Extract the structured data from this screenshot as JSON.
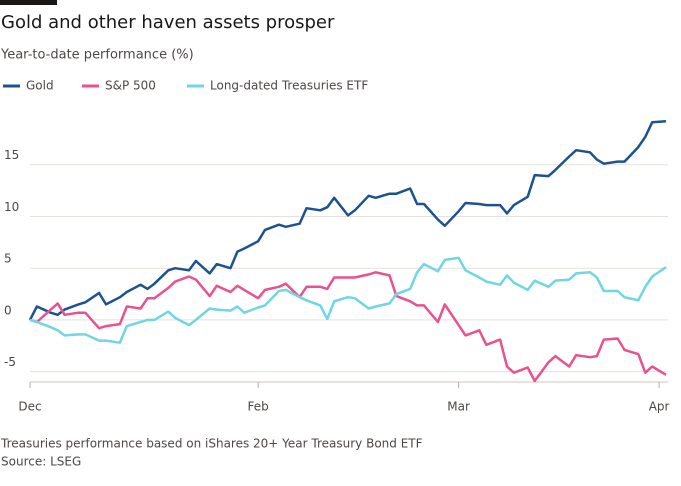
{
  "chart_data": {
    "type": "line",
    "title": "Gold and other haven assets prosper",
    "subtitle": "Year-to-date performance (%)",
    "note": "Treasuries performance based on iShares 20+ Year Treasury Bond ETF",
    "source": "Source: LSEG",
    "x": [
      0,
      1,
      3,
      4,
      5,
      7,
      8,
      10,
      11,
      13,
      14,
      16,
      17,
      18,
      20,
      21,
      23,
      24,
      26,
      27,
      29,
      30,
      31,
      33,
      34,
      36,
      37,
      39,
      40,
      42,
      43,
      44,
      46,
      47,
      49,
      50,
      52,
      53,
      55,
      56,
      57,
      59,
      60,
      62,
      63,
      65,
      66,
      68,
      69,
      70,
      72,
      73,
      75,
      76,
      78,
      79,
      81,
      82,
      83,
      85,
      86,
      88,
      89,
      90,
      92
    ],
    "xlim": [
      0,
      92
    ],
    "xticks": [
      {
        "value": 0,
        "label": "Dec"
      },
      {
        "value": 33,
        "label": "Feb"
      },
      {
        "value": 62,
        "label": "Mar"
      },
      {
        "value": 91,
        "label": "Apr"
      }
    ],
    "ylim": [
      -6,
      20
    ],
    "yticks": [
      -5,
      0,
      5,
      10,
      15
    ],
    "grid": true,
    "legend": "top",
    "series": [
      {
        "name": "Gold",
        "color": "#1d5190",
        "values": [
          0,
          1.3,
          0.7,
          0.5,
          1.0,
          1.5,
          1.7,
          2.6,
          1.5,
          2.2,
          2.7,
          3.4,
          3.0,
          3.5,
          4.8,
          5.0,
          4.8,
          5.7,
          4.5,
          5.4,
          5.0,
          6.6,
          6.9,
          7.6,
          8.7,
          9.2,
          9.0,
          9.3,
          10.8,
          10.6,
          10.9,
          11.8,
          10.1,
          10.6,
          12.0,
          11.8,
          12.2,
          12.2,
          12.7,
          11.2,
          11.2,
          9.7,
          9.1,
          10.5,
          11.3,
          11.2,
          11.1,
          11.1,
          10.3,
          11.1,
          11.9,
          14.0,
          13.9,
          14.5,
          15.8,
          16.4,
          16.2,
          15.5,
          15.1,
          15.3,
          15.3,
          16.7,
          17.7,
          19.1,
          19.2
        ]
      },
      {
        "name": "S&P 500",
        "color": "#e9528e",
        "values": [
          0,
          -0.2,
          1.0,
          1.6,
          0.5,
          0.7,
          0.7,
          -0.8,
          -0.6,
          -0.4,
          1.3,
          1.1,
          2.1,
          2.1,
          3.1,
          3.7,
          4.2,
          3.9,
          2.3,
          3.3,
          2.7,
          3.3,
          2.9,
          2.1,
          2.9,
          3.2,
          3.5,
          2.2,
          3.2,
          3.2,
          3.0,
          4.1,
          4.1,
          4.1,
          4.4,
          4.6,
          4.3,
          2.3,
          1.8,
          1.4,
          1.4,
          -0.2,
          1.5,
          -0.5,
          -1.5,
          -1.0,
          -2.4,
          -1.9,
          -4.5,
          -5.1,
          -4.6,
          -5.9,
          -4.1,
          -3.5,
          -4.5,
          -3.4,
          -3.6,
          -3.5,
          -1.9,
          -1.8,
          -2.9,
          -3.3,
          -5.1,
          -4.5,
          -5.3
        ]
      },
      {
        "name": "Long-dated Treasuries ETF",
        "color": "#6fd6e2",
        "values": [
          0,
          -0.2,
          -0.7,
          -1.0,
          -1.5,
          -1.4,
          -1.4,
          -2.0,
          -2.0,
          -2.2,
          -0.6,
          -0.2,
          0,
          0,
          0.8,
          0.2,
          -0.5,
          0,
          1.1,
          1.0,
          0.9,
          1.3,
          0.7,
          1.2,
          1.4,
          2.8,
          2.9,
          2.2,
          1.9,
          1.4,
          0.1,
          1.8,
          2.2,
          2.1,
          1.1,
          1.3,
          1.6,
          2.5,
          3.0,
          4.6,
          5.4,
          4.7,
          5.8,
          6.0,
          4.8,
          4.1,
          3.7,
          3.4,
          4.3,
          3.6,
          2.9,
          3.8,
          3.2,
          3.8,
          3.9,
          4.5,
          4.6,
          4.1,
          2.8,
          2.8,
          2.2,
          1.9,
          3.2,
          4.2,
          5.1
        ]
      }
    ]
  }
}
